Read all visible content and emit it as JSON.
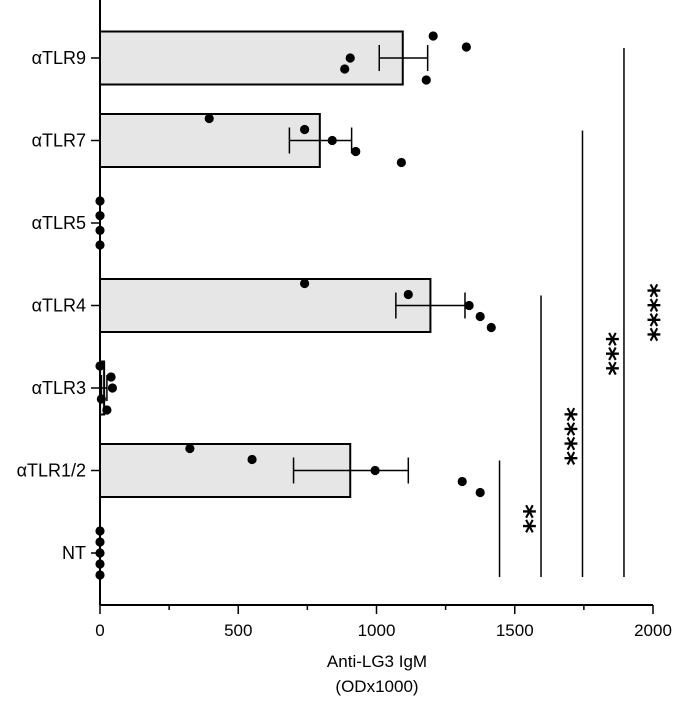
{
  "chart_data": {
    "type": "bar",
    "orientation": "horizontal",
    "categories": [
      "αTLR9",
      "αTLR7",
      "αTLR5",
      "αTLR4",
      "αTLR3",
      "αTLR1/2",
      "NT"
    ],
    "values": [
      1095,
      795,
      0,
      1195,
      15,
      905,
      0
    ],
    "error_low": [
      1010,
      685,
      0,
      1070,
      5,
      700,
      0
    ],
    "error_high": [
      1185,
      910,
      0,
      1320,
      25,
      1115,
      0
    ],
    "points": [
      [
        1205,
        1325,
        905,
        885,
        1180
      ],
      [
        395,
        740,
        840,
        925,
        1090
      ],
      [
        0,
        0,
        0,
        0
      ],
      [
        740,
        1115,
        1335,
        1375,
        1415
      ],
      [
        0,
        40,
        45,
        5,
        25
      ],
      [
        325,
        550,
        995,
        1310,
        1375
      ],
      [
        0,
        0,
        0,
        0,
        0
      ]
    ],
    "xlim": [
      0,
      2000
    ],
    "xticks": [
      "0",
      "500",
      "1000",
      "1500",
      "2000"
    ],
    "xticks_values": [
      0,
      500,
      1000,
      1500,
      2000
    ],
    "xlabel": "Anti-LG3 IgM",
    "xlabel2": "(ODx1000)",
    "grid": false,
    "bar_color": "#e6e6e6",
    "significance": [
      {
        "label": "**",
        "from": "αTLR1/2",
        "x": 1445
      },
      {
        "label": "****",
        "from": "αTLR4",
        "x": 1595
      },
      {
        "label": "***",
        "from": "αTLR7",
        "x": 1745
      },
      {
        "label": "****",
        "from": "αTLR9",
        "x": 1895
      }
    ]
  }
}
